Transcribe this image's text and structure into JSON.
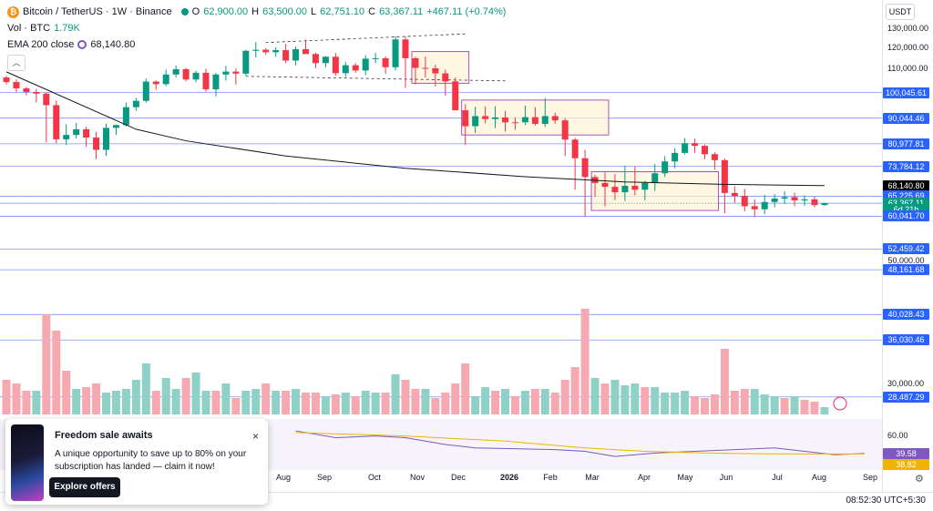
{
  "legend": {
    "coin_glyph": "₿",
    "symbol": "Bitcoin / TetherUS · 1W · Binance",
    "open_label": "O",
    "open": "62,900.00",
    "high_label": "H",
    "high": "63,500.00",
    "low_label": "L",
    "low": "62,751.10",
    "close_label": "C",
    "close": "63,367.11",
    "change": "+467.11 (+0.74%)",
    "vol_label": "Vol · BTC",
    "vol_value": "1.79K",
    "ema_label": "EMA 200 close",
    "ema_value": "68,140.80"
  },
  "currency": "USDT",
  "price_axis": {
    "ticks": [
      {
        "label": "130,000.00",
        "price": 130000
      },
      {
        "label": "120,000.00",
        "price": 120000
      },
      {
        "label": "110,000.00",
        "price": 110000
      },
      {
        "label": "30,000.00",
        "price": 30000
      }
    ],
    "levels": [
      {
        "label": "100,045.61",
        "price": 100045.61,
        "color": "#2962ff"
      },
      {
        "label": "90,044.46",
        "price": 90044.46,
        "color": "#2962ff"
      },
      {
        "label": "80,977.81",
        "price": 80977.81,
        "color": "#2962ff"
      },
      {
        "label": "73,784.12",
        "price": 73784.12,
        "color": "#2962ff"
      },
      {
        "label": "68,140.80",
        "price": 68140.8,
        "color": "#000000"
      },
      {
        "label": "65,225.69",
        "price": 65225.69,
        "color": "#2962ff"
      },
      {
        "label": "63,367.11",
        "price": 63367.11,
        "color": "#089981"
      },
      {
        "label": "6d 21h",
        "price": 61700,
        "color": "#089981"
      },
      {
        "label": "60,041.70",
        "price": 60041.7,
        "color": "#2962ff"
      },
      {
        "label": "52,459.42",
        "price": 52459.42,
        "color": "#2962ff"
      },
      {
        "label": "50,000.00",
        "price": 50000,
        "color": "#ffffff"
      },
      {
        "label": "48,161.68",
        "price": 48161.68,
        "color": "#2962ff"
      },
      {
        "label": "40,028.43",
        "price": 40028.43,
        "color": "#2962ff"
      },
      {
        "label": "36,030.46",
        "price": 36030.46,
        "color": "#2962ff"
      },
      {
        "label": "28,487.29",
        "price": 28487.29,
        "color": "#2962ff"
      }
    ]
  },
  "rsi_axis": {
    "ticks": [
      {
        "label": "60.00",
        "value": 60
      }
    ],
    "labels": [
      {
        "label": "39.58",
        "value": 39.58,
        "color": "#7e57c2"
      },
      {
        "label": "38.82",
        "value": 38.82,
        "color": "#f0b400"
      }
    ]
  },
  "time_axis": {
    "labels": [
      "Aug",
      "Sep",
      "Oct",
      "Nov",
      "Dec",
      "2026",
      "Feb",
      "Mar",
      "Apr",
      "May",
      "Jun",
      "Jul",
      "Aug",
      "Sep"
    ],
    "clock": "08:52:30 UTC+5:30"
  },
  "popup": {
    "title": "Freedom sale awaits",
    "body": "A unique opportunity to save up to 80% on your subscription has landed — claim it now!",
    "button": "Explore offers",
    "close": "×"
  },
  "icons": {
    "collapse": "︿",
    "settings": "⚙",
    "alert": "⚡"
  },
  "colors": {
    "up": "#089981",
    "down": "#f23645",
    "ema": "#131722",
    "rsi": "#7e57c2",
    "rsi_ma": "#f0b400",
    "level": "#2962ff"
  },
  "chart_data": {
    "type": "candlestick",
    "timeframe": "1W",
    "series_ohlc": [
      [
        106500,
        107200,
        103500,
        104500
      ],
      [
        104500,
        105800,
        100300,
        101800
      ],
      [
        101800,
        102500,
        98900,
        100300
      ],
      [
        100300,
        101500,
        96000,
        99600
      ],
      [
        99600,
        100200,
        81500,
        95000
      ],
      [
        95000,
        96800,
        81200,
        82500
      ],
      [
        82500,
        87800,
        80600,
        84000
      ],
      [
        84000,
        88300,
        82800,
        86000
      ],
      [
        86000,
        86900,
        80000,
        83100
      ],
      [
        83100,
        85100,
        76000,
        79000
      ],
      [
        79000,
        88000,
        77000,
        86500
      ],
      [
        86500,
        87700,
        84000,
        87500
      ],
      [
        87500,
        96000,
        87000,
        94200
      ],
      [
        94200,
        97900,
        92800,
        96700
      ],
      [
        96700,
        106000,
        96000,
        104700
      ],
      [
        104700,
        105200,
        101200,
        103600
      ],
      [
        103600,
        110000,
        102800,
        107800
      ],
      [
        107800,
        111900,
        106500,
        110200
      ],
      [
        110200,
        110800,
        104800,
        105600
      ],
      [
        105600,
        109500,
        104400,
        108600
      ],
      [
        108600,
        110400,
        100400,
        101400
      ],
      [
        101400,
        108600,
        98500,
        107800
      ],
      [
        107800,
        111700,
        105100,
        109100
      ],
      [
        109100,
        110500,
        103400,
        108200
      ],
      [
        108200,
        119300,
        107300,
        118900
      ],
      [
        118900,
        123200,
        115700,
        119400
      ],
      [
        119400,
        120200,
        116900,
        118200
      ],
      [
        118200,
        120600,
        116000,
        119200
      ],
      [
        119200,
        122300,
        113000,
        114200
      ],
      [
        114200,
        121000,
        111900,
        119700
      ],
      [
        119700,
        124500,
        117800,
        117300
      ],
      [
        117300,
        118000,
        110600,
        113000
      ],
      [
        113000,
        116300,
        111100,
        116000
      ],
      [
        116000,
        117800,
        107300,
        108400
      ],
      [
        108400,
        113600,
        106800,
        112000
      ],
      [
        112000,
        113000,
        108600,
        109600
      ],
      [
        109600,
        116700,
        107500,
        115100
      ],
      [
        115100,
        117900,
        113000,
        115300
      ],
      [
        115300,
        116200,
        108100,
        111100
      ],
      [
        111100,
        126200,
        109600,
        124600
      ],
      [
        124600,
        126100,
        102000,
        115300
      ],
      [
        115300,
        116000,
        103500,
        110800
      ],
      [
        110800,
        116000,
        106500,
        110600
      ],
      [
        110600,
        112200,
        102600,
        108300
      ],
      [
        108300,
        110000,
        98800,
        104800
      ],
      [
        104800,
        106500,
        94000,
        93000
      ],
      [
        93000,
        95400,
        80600,
        87100
      ],
      [
        87100,
        94400,
        84700,
        90800
      ],
      [
        90800,
        94500,
        88100,
        89700
      ],
      [
        89700,
        94600,
        86400,
        90300
      ],
      [
        90300,
        92800,
        85200,
        88500
      ],
      [
        88500,
        90300,
        85800,
        88400
      ],
      [
        88500,
        94800,
        87500,
        90400
      ],
      [
        90400,
        94200,
        87300,
        87900
      ],
      [
        87900,
        97900,
        86900,
        90800
      ],
      [
        90800,
        92100,
        88000,
        89200
      ],
      [
        89200,
        90000,
        77000,
        82400
      ],
      [
        82400,
        83000,
        67000,
        76300
      ],
      [
        76300,
        79000,
        60000,
        70600
      ],
      [
        70600,
        71200,
        65000,
        68900
      ],
      [
        68900,
        72000,
        62500,
        67800
      ],
      [
        67800,
        71500,
        64200,
        66300
      ],
      [
        66300,
        74000,
        64000,
        68100
      ],
      [
        68100,
        73800,
        65500,
        67000
      ],
      [
        67000,
        69500,
        64100,
        68900
      ],
      [
        68900,
        74500,
        66700,
        71700
      ],
      [
        71700,
        77000,
        70600,
        75300
      ],
      [
        75300,
        79500,
        73200,
        78000
      ],
      [
        78000,
        82900,
        77500,
        81200
      ],
      [
        81200,
        82700,
        78000,
        80300
      ],
      [
        80300,
        80700,
        76000,
        77600
      ],
      [
        77600,
        78200,
        72800,
        75700
      ],
      [
        75700,
        76200,
        60800,
        66100
      ],
      [
        66100,
        68000,
        63500,
        65300
      ],
      [
        65300,
        67300,
        61300,
        62600
      ],
      [
        62600,
        64400,
        59800,
        61800
      ],
      [
        61800,
        65600,
        60600,
        63700
      ],
      [
        63700,
        65800,
        62300,
        64600
      ],
      [
        64600,
        66600,
        63100,
        65000
      ],
      [
        65000,
        66200,
        62600,
        64100
      ],
      [
        64100,
        65500,
        62700,
        64400
      ],
      [
        64400,
        65200,
        62300,
        62900
      ],
      [
        62900,
        63500,
        62751.1,
        63367.11
      ]
    ],
    "ema200": [
      [
        0,
        109000
      ],
      [
        13,
        86000
      ],
      [
        18,
        82000
      ],
      [
        28,
        77000
      ],
      [
        40,
        73200
      ],
      [
        52,
        70700
      ],
      [
        62,
        69200
      ],
      [
        72,
        68500
      ],
      [
        82,
        68140.8
      ]
    ],
    "annotations": {
      "rectangles": [
        {
          "from": 41,
          "to": 46,
          "top": 118500,
          "bottom": 104000
        },
        {
          "from": 46,
          "to": 60,
          "top": 97000,
          "bottom": 84000
        },
        {
          "from": 59,
          "to": 71,
          "top": 72200,
          "bottom": 61500
        }
      ],
      "trendlines": [
        {
          "from": [
            26,
            123000
          ],
          "to": [
            46,
            127500
          ]
        },
        {
          "from": [
            24,
            107000
          ],
          "to": [
            50,
            105000
          ]
        }
      ]
    },
    "volume": [
      19,
      17,
      13,
      13,
      55,
      46,
      24,
      14,
      15,
      17,
      12,
      13,
      14,
      19,
      28,
      13,
      20,
      14,
      20,
      23,
      13,
      13,
      17,
      9,
      13,
      14,
      17,
      13,
      13,
      14,
      12,
      12,
      10,
      11,
      12,
      10,
      13,
      12,
      12,
      22,
      19,
      14,
      14,
      9,
      12,
      17,
      28,
      10,
      15,
      13,
      14,
      10,
      13,
      14,
      14,
      12,
      19,
      26,
      58,
      20,
      17,
      19,
      16,
      17,
      15,
      15,
      12,
      12,
      13,
      10,
      9,
      11,
      36,
      13,
      14,
      14,
      11,
      10,
      9,
      10,
      8,
      7,
      4
    ],
    "volume_up": [
      false,
      false,
      false,
      true,
      false,
      false,
      false,
      true,
      false,
      false,
      true,
      true,
      true,
      true,
      true,
      false,
      true,
      true,
      false,
      true,
      true,
      false,
      true,
      false,
      true,
      true,
      false,
      true,
      false,
      true,
      false,
      false,
      true,
      false,
      true,
      false,
      true,
      true,
      false,
      true,
      false,
      false,
      true,
      false,
      false,
      false,
      false,
      true,
      true,
      false,
      true,
      false,
      true,
      false,
      true,
      false,
      false,
      false,
      false,
      true,
      false,
      true,
      true,
      true,
      false,
      true,
      true,
      true,
      true,
      false,
      false,
      false,
      false,
      false,
      false,
      true,
      true,
      true,
      false,
      true,
      false,
      false,
      true
    ],
    "rsi": [
      [
        29,
        66
      ],
      [
        33,
        58
      ],
      [
        37,
        60
      ],
      [
        40,
        58
      ],
      [
        44,
        50
      ],
      [
        47,
        46
      ],
      [
        51,
        45
      ],
      [
        55,
        44
      ],
      [
        58,
        42
      ],
      [
        61,
        36
      ],
      [
        65,
        40
      ],
      [
        69,
        42
      ],
      [
        73,
        44
      ],
      [
        77,
        46
      ],
      [
        80,
        42
      ],
      [
        83,
        38
      ],
      [
        86,
        39.58
      ]
    ],
    "rsi_ma": [
      [
        29,
        64
      ],
      [
        40,
        60
      ],
      [
        50,
        54
      ],
      [
        58,
        46
      ],
      [
        64,
        42
      ],
      [
        70,
        40
      ],
      [
        76,
        39
      ],
      [
        86,
        38.82
      ]
    ]
  }
}
